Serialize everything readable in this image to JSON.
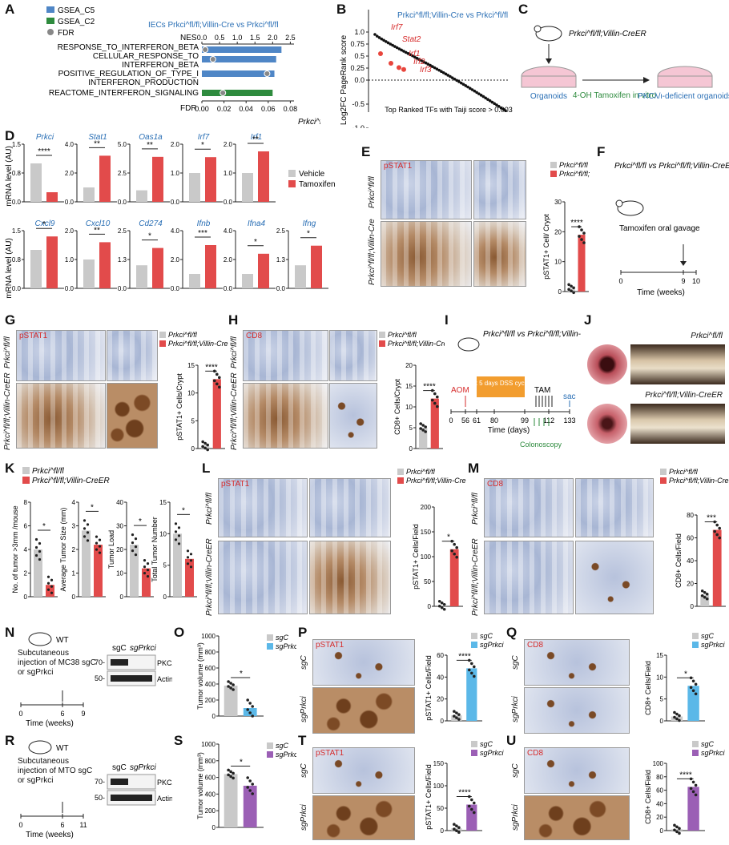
{
  "panels": {
    "A": {
      "label": "A",
      "legend": [
        "GSEA_C5",
        "GSEA_C2",
        "FDR"
      ],
      "title": "IECs Prkci^fl/fl;Villin-Cre vs Prkci^fl/fl",
      "nes_label": "NES",
      "fdr_label": "FDR",
      "x_label": "Prkci^fl/fl",
      "nes_ticks": [
        "0.0",
        "0.5",
        "1.0",
        "1.5",
        "2.0",
        "2.5"
      ],
      "fdr_ticks": [
        "0.00",
        "0.02",
        "0.04",
        "0.06",
        "0.08"
      ],
      "terms": [
        "RESPONSE_TO_INTERFERON_BETA",
        "CELLULAR_RESPONSE_TO",
        "INTERFERON_BETA",
        "POSITIVE_REGULATION_OF_TYPE_I",
        "INTERFERON_PRODUCTION",
        "REACTOME_INTERFERON_SIGNALING"
      ]
    },
    "B": {
      "label": "B",
      "ylabel": "Log2FC PageRank score",
      "xlabel": "Top Ranked TFs with Taiji score > 0.003",
      "title": "Prkci^fl/fl;Villin-Cre vs Prkci^fl/fl",
      "y_ticks": [
        "1.0",
        "0.75",
        "0.5",
        "0.25",
        "0.0",
        "-0.5",
        "-1.0"
      ],
      "highlight": [
        "Irf7",
        "Stat2",
        "Irf1",
        "Irf2",
        "Irf3"
      ]
    },
    "C": {
      "label": "C",
      "mouse_label": "Prkci^fl/fl;Villin-CreER",
      "organoids": "Organoids",
      "treatment": "4-OH Tamoxifen in vitro",
      "result": "PKCλ/ι-deficient organoids"
    },
    "D": {
      "label": "D",
      "ylabel": "mRNA level (AU)",
      "legend": [
        "Vehicle",
        "Tamoxifen"
      ],
      "genes_top": [
        "Prkci",
        "Stat1",
        "Oas1a",
        "Irf7",
        "Irf1"
      ],
      "genes_bottom": [
        "Cxcl9",
        "Cxcl10",
        "Cd274",
        "Ifnb",
        "Ifna4",
        "Ifng"
      ],
      "sig_top": [
        "****",
        "**",
        "**",
        "*",
        "**"
      ],
      "sig_bottom": [
        "*",
        "**",
        "*",
        "***",
        "*",
        "*"
      ]
    },
    "E": {
      "label": "E",
      "stain": "pSTAT1",
      "row1": "Prkci^fl/fl",
      "row2": "Prkci^fl/fl;Villin-Cre",
      "ylabel": "pSTAT1+ Cell/ Crypt",
      "legend": [
        "Prkci^fl/fl",
        "Prkci^fl/fl;Villin-Cre"
      ],
      "sig": "****",
      "ticks": [
        "0",
        "10",
        "20",
        "30"
      ]
    },
    "F": {
      "label": "F",
      "title": "Prkci^fl/fl vs Prkci^fl/fl;Villin-CreER",
      "step": "Tamoxifen oral gavage",
      "xlabel": "Time (weeks)",
      "ticks": [
        "0",
        "9",
        "10"
      ]
    },
    "G": {
      "label": "G",
      "stain": "pSTAT1",
      "row1": "Prkci^fl/fl",
      "row2": "Prkci^fl/fl;Villin-CreER",
      "ylabel": "pSTAT1+ Cells/Crypt",
      "legend": [
        "Prkci^fl/fl",
        "Prkci^fl/fl;Villin-CreER"
      ],
      "sig": "****",
      "ticks": [
        "0",
        "5",
        "10",
        "15"
      ]
    },
    "H": {
      "label": "H",
      "stain": "CD8",
      "row1": "Prkci^fl/fl",
      "row2": "Prkci^fl/fl;Villin-CreER",
      "ylabel": "CD8+ Cells/Crypt",
      "legend": [
        "Prkci^fl/fl",
        "Prkci^fl/fl;Villin-CreER"
      ],
      "sig": "****",
      "ticks": [
        "0",
        "5",
        "10",
        "15",
        "20"
      ]
    },
    "I": {
      "label": "I",
      "title": "Prkci^fl/fl vs Prkci^fl/fl;Villin-CreER",
      "aom": "AOM",
      "dss": "3 x 5 days DSS cycles",
      "tam": "TAM",
      "sac": "sac",
      "xlabel": "Time (days)",
      "colonoscopy": "Colonoscopy",
      "ticks": [
        "0",
        "56",
        "61",
        "80",
        "99",
        "112",
        "133"
      ]
    },
    "J": {
      "label": "J",
      "top": "Prkci^fl/fl",
      "bottom": "Prkci^fl/fl;Villin-CreER"
    },
    "K": {
      "label": "K",
      "plots": [
        {
          "ylabel": "No. of tumor >3mm /mouse",
          "ticks": [
            "0",
            "2",
            "4",
            "6",
            "8"
          ]
        },
        {
          "ylabel": "Average Tumor Size (mm)",
          "ticks": [
            "0",
            "1",
            "2",
            "3",
            "4"
          ]
        },
        {
          "ylabel": "Tumor Load",
          "ticks": [
            "0",
            "10",
            "20",
            "30",
            "40"
          ]
        },
        {
          "ylabel": "Total Tumor Number",
          "ticks": [
            "0",
            "5",
            "10",
            "15"
          ]
        }
      ],
      "legend": [
        "Prkci^fl/fl",
        "Prkci^fl/fl;Villin-CreER"
      ],
      "sig": "*"
    },
    "L": {
      "label": "L",
      "stain": "pSTAT1",
      "row1": "Prkci^fl/fl",
      "row2": "Prkci^fl/fl;Villin-CreER",
      "ylabel": "pSTAT1+ Cells/Field",
      "legend": [
        "Prkci^fl/fl",
        "Prkci^fl/fl;Villin-CreER"
      ],
      "sig": "*",
      "ticks": [
        "0",
        "50",
        "100",
        "150",
        "200"
      ]
    },
    "M": {
      "label": "M",
      "stain": "CD8",
      "row1": "Prkci^fl/fl",
      "row2": "Prkci^fl/fl;Villin-CreER",
      "ylabel": "CD8+ Cells/Field",
      "legend": [
        "Prkci^fl/fl",
        "Prkci^fl/fl;Villin-CreER"
      ],
      "sig": "***",
      "ticks": [
        "0",
        "20",
        "40",
        "60",
        "80"
      ]
    },
    "N": {
      "label": "N",
      "wt": "WT",
      "desc": "Subcutaneous injection of MC38 sgC or sgPrkci",
      "xlabel": "Time (weeks)",
      "ticks": [
        "0",
        "6",
        "9"
      ],
      "blot_cols": [
        "sgC",
        "sgPrkci"
      ],
      "blot_rows": [
        "PKCλ/ι",
        "Actin"
      ],
      "mw": [
        "70-",
        "50-"
      ]
    },
    "O": {
      "label": "O",
      "ylabel": "Tumor volume (mm³)",
      "legend": [
        "sgC",
        "sgPrkci"
      ],
      "sig": "*",
      "ticks": [
        "0",
        "200",
        "400",
        "600",
        "800",
        "1000"
      ]
    },
    "P": {
      "label": "P",
      "stain": "pSTAT1",
      "row1": "sgC",
      "row2": "sgPrkci",
      "ylabel": "pSTAT1+ Cells/Field",
      "legend": [
        "sgC",
        "sgPrkci"
      ],
      "sig": "****",
      "ticks": [
        "0",
        "20",
        "40",
        "60"
      ]
    },
    "Q": {
      "label": "Q",
      "stain": "CD8",
      "row1": "sgC",
      "row2": "sgPrkci",
      "ylabel": "CD8+ Cells/Field",
      "legend": [
        "sgC",
        "sgPrkci"
      ],
      "sig": "*",
      "ticks": [
        "0",
        "5",
        "10",
        "15"
      ]
    },
    "R": {
      "label": "R",
      "wt": "WT",
      "desc": "Subcutaneous injection of MTO sgC or sgPrkci",
      "xlabel": "Time (weeks)",
      "ticks": [
        "0",
        "6",
        "11"
      ],
      "blot_cols": [
        "sgC",
        "sgPrkci"
      ],
      "blot_rows": [
        "PKCλ/ι",
        "Actin"
      ],
      "mw": [
        "70-",
        "50-"
      ]
    },
    "S": {
      "label": "S",
      "ylabel": "Tumor volume (mm³)",
      "legend": [
        "sgC",
        "sgPrkci"
      ],
      "sig": "*",
      "ticks": [
        "0",
        "200",
        "400",
        "600",
        "800",
        "1000"
      ]
    },
    "T": {
      "label": "T",
      "stain": "pSTAT1",
      "row1": "sgC",
      "row2": "sgPrkci",
      "ylabel": "pSTAT1+ Cells/Field",
      "legend": [
        "sgC",
        "sgPrkci"
      ],
      "sig": "****",
      "ticks": [
        "0",
        "50",
        "100",
        "150"
      ]
    },
    "U": {
      "label": "U",
      "stain": "CD8",
      "row1": "sgC",
      "row2": "sgPrkci",
      "ylabel": "CD8+ Cells/Field",
      "legend": [
        "sgC",
        "sgPrkci"
      ],
      "sig": "****",
      "ticks": [
        "0",
        "20",
        "40",
        "60",
        "80",
        "100"
      ]
    }
  },
  "chart_data": [
    {
      "type": "bar",
      "panel": "A",
      "categories": [
        "RESPONSE_TO_INTERFERON_BETA",
        "CELLULAR_RESPONSE_TO_INTERFERON_BETA",
        "POSITIVE_REGULATION_OF_TYPE_I_INTERFERON_PRODUCTION",
        "REACTOME_INTERFERON_SIGNALING"
      ],
      "series": [
        {
          "name": "NES",
          "values": [
            2.25,
            2.1,
            2.05,
            2.0
          ]
        },
        {
          "name": "FDR",
          "values": [
            0.003,
            0.01,
            0.059,
            0.019
          ]
        }
      ]
    },
    {
      "type": "line",
      "panel": "B",
      "ylabel": "Log2FC PageRank score",
      "ylim": [
        -1.0,
        1.0
      ]
    },
    {
      "type": "bar",
      "panel": "D",
      "categories": [
        "Prkci",
        "Stat1",
        "Oas1a",
        "Irf7",
        "Irf1",
        "Cxcl9",
        "Cxcl10",
        "Cd274",
        "Ifnb",
        "Ifna4",
        "Ifng"
      ],
      "series": [
        {
          "name": "Vehicle",
          "values": [
            1.0,
            1.0,
            1.0,
            1.0,
            1.0,
            1.0,
            1.0,
            1.0,
            1.0,
            1.0,
            1.0
          ]
        },
        {
          "name": "Tamoxifen",
          "values": [
            0.25,
            3.2,
            3.9,
            1.55,
            1.75,
            1.35,
            1.6,
            1.75,
            3.0,
            2.4,
            1.85
          ]
        }
      ]
    },
    {
      "type": "bar",
      "panel": "E",
      "categories": [
        "Prkci^fl/fl",
        "Prkci^fl/fl;Villin-Cre"
      ],
      "values": [
        1,
        19
      ],
      "ylim": [
        0,
        30
      ]
    },
    {
      "type": "bar",
      "panel": "G",
      "categories": [
        "Prkci^fl/fl",
        "Prkci^fl/fl;Villin-CreER"
      ],
      "values": [
        0.5,
        12.5
      ],
      "ylim": [
        0,
        15
      ]
    },
    {
      "type": "bar",
      "panel": "H",
      "categories": [
        "Prkci^fl/fl",
        "Prkci^fl/fl;Villin-CreER"
      ],
      "values": [
        5,
        12
      ],
      "ylim": [
        0,
        20
      ]
    },
    {
      "type": "bar",
      "panel": "K",
      "categories": [
        "No. of tumor >3mm /mouse",
        "Average Tumor Size (mm)",
        "Tumor Load",
        "Total Tumor Number"
      ],
      "series": [
        {
          "name": "Prkci^fl/fl",
          "values": [
            4,
            2.8,
            22,
            10
          ]
        },
        {
          "name": "Prkci^fl/fl;Villin-CreER",
          "values": [
            1,
            2.2,
            12,
            6
          ]
        }
      ]
    },
    {
      "type": "bar",
      "panel": "L",
      "categories": [
        "Prkci^fl/fl",
        "Prkci^fl/fl;Villin-CreER"
      ],
      "values": [
        2,
        115
      ],
      "ylim": [
        0,
        200
      ]
    },
    {
      "type": "bar",
      "panel": "M",
      "categories": [
        "Prkci^fl/fl",
        "Prkci^fl/fl;Villin-CreER"
      ],
      "values": [
        10,
        67
      ],
      "ylim": [
        0,
        80
      ]
    },
    {
      "type": "bar",
      "panel": "O",
      "categories": [
        "sgC",
        "sgPrkci"
      ],
      "values": [
        380,
        100
      ],
      "ylim": [
        0,
        1000
      ]
    },
    {
      "type": "bar",
      "panel": "P",
      "categories": [
        "sgC",
        "sgPrkci"
      ],
      "values": [
        5,
        48
      ],
      "ylim": [
        0,
        60
      ]
    },
    {
      "type": "bar",
      "panel": "Q",
      "categories": [
        "sgC",
        "sgPrkci"
      ],
      "values": [
        1,
        8
      ],
      "ylim": [
        0,
        15
      ]
    },
    {
      "type": "bar",
      "panel": "S",
      "categories": [
        "sgC",
        "sgPrkci"
      ],
      "values": [
        640,
        500
      ],
      "ylim": [
        0,
        1000
      ]
    },
    {
      "type": "bar",
      "panel": "T",
      "categories": [
        "sgC",
        "sgPrkci"
      ],
      "values": [
        5,
        58
      ],
      "ylim": [
        0,
        150
      ]
    },
    {
      "type": "bar",
      "panel": "U",
      "categories": [
        "sgC",
        "sgPrkci"
      ],
      "values": [
        2,
        65
      ],
      "ylim": [
        0,
        100
      ]
    }
  ],
  "colors": {
    "c5": "#4f86c6",
    "c2": "#2e8b3e",
    "fdr": "#888888",
    "vehicle": "#c9c9c9",
    "tamoxifen": "#e24b4b",
    "sgPrkci_blue": "#5bb8e8",
    "sgPrkci_purple": "#9b5fb5"
  }
}
